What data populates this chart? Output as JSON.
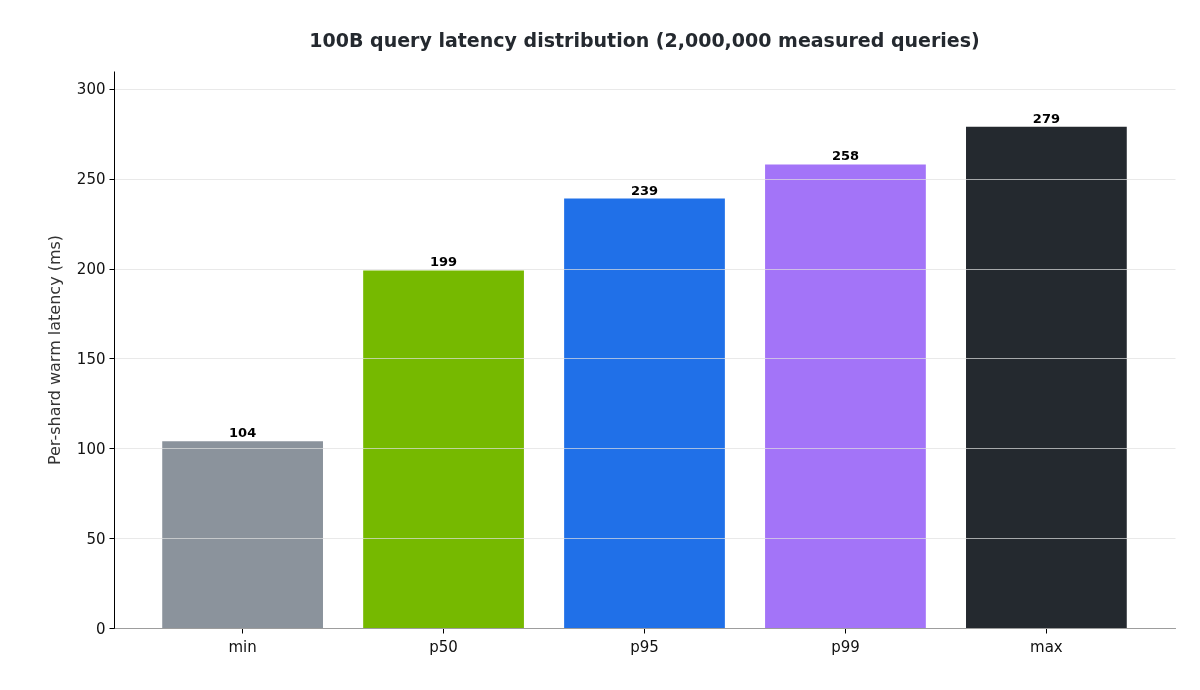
{
  "chart_data": {
    "type": "bar",
    "title": "100B query latency distribution (2,000,000 measured queries)",
    "ylabel": "Per-shard warm latency (ms)",
    "categories": [
      "min",
      "p50",
      "p95",
      "p99",
      "max"
    ],
    "values": [
      104,
      199,
      239,
      258,
      279
    ],
    "colors": [
      "#8b939c",
      "#76b900",
      "#2070e8",
      "#a374f8",
      "#24292f"
    ],
    "ylim": [
      0,
      310
    ],
    "yticks": [
      0,
      50,
      100,
      150,
      200,
      250,
      300
    ],
    "grid": "y",
    "data_labels": true
  }
}
